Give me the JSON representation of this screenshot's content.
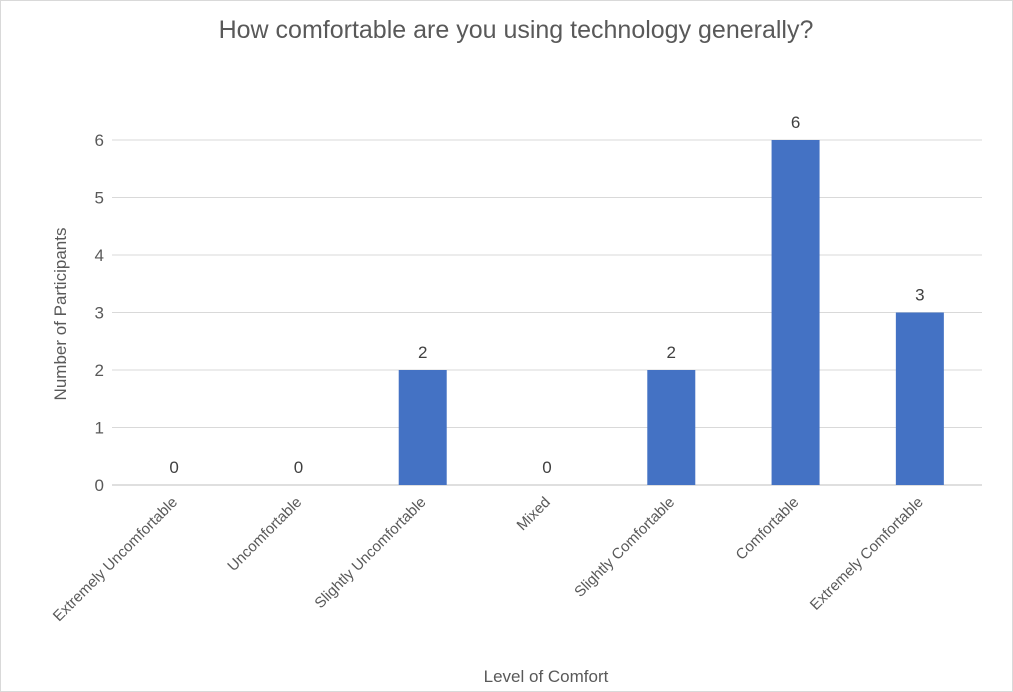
{
  "chart_data": {
    "type": "bar",
    "title": "How comfortable are you using technology generally?",
    "xlabel": "Level of Comfort",
    "ylabel": "Number of Participants",
    "categories": [
      "Extremely Uncomfortable",
      "Uncomfortable",
      "Slightly Uncomfortable",
      "Mixed",
      "Slightly Comfortable",
      "Comfortable",
      "Extremely Comfortable"
    ],
    "values": [
      0,
      0,
      2,
      0,
      2,
      6,
      3
    ],
    "ylim": [
      0,
      6
    ],
    "yticks": [
      "0",
      "1",
      "2",
      "3",
      "4",
      "5",
      "6"
    ],
    "grid": true,
    "legend": "none",
    "bar_color": "#4472C4",
    "show_data_labels": true
  }
}
